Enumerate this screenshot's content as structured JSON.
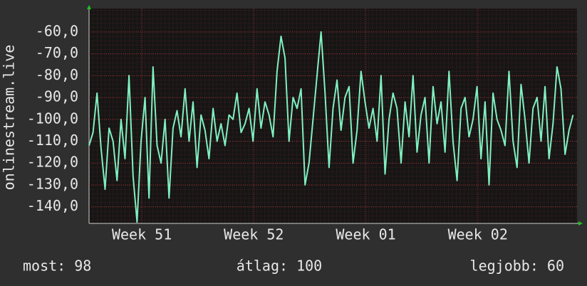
{
  "chart_data": {
    "type": "line",
    "y_label": "onlinestream.live",
    "xlim": [
      0,
      30.5
    ],
    "xticks": [
      {
        "value": 3.3,
        "label": "Week 51"
      },
      {
        "value": 10.3,
        "label": "Week 52"
      },
      {
        "value": 17.3,
        "label": "Week 01"
      },
      {
        "value": 24.3,
        "label": "Week 02"
      }
    ],
    "ylim": [
      -147.6,
      -49.3
    ],
    "yticks": [
      {
        "value": -60,
        "label": "-60,0"
      },
      {
        "value": -70,
        "label": "-70,0"
      },
      {
        "value": -80,
        "label": "-80,0"
      },
      {
        "value": -90,
        "label": "-90,0"
      },
      {
        "value": -100,
        "label": "-100,0"
      },
      {
        "value": -110,
        "label": "-110,0"
      },
      {
        "value": -120,
        "label": "-120,0"
      },
      {
        "value": -130,
        "label": "-130,0"
      },
      {
        "value": -140,
        "label": "-140,0"
      }
    ],
    "grid": true,
    "x": [
      0,
      0.25,
      0.5,
      0.75,
      1,
      1.25,
      1.5,
      1.75,
      2,
      2.25,
      2.5,
      2.75,
      3,
      3.25,
      3.5,
      3.75,
      4,
      4.25,
      4.5,
      4.75,
      5,
      5.25,
      5.5,
      5.75,
      6,
      6.25,
      6.5,
      6.75,
      7,
      7.25,
      7.5,
      7.75,
      8,
      8.25,
      8.5,
      8.75,
      9,
      9.25,
      9.5,
      9.75,
      10,
      10.25,
      10.5,
      10.75,
      11,
      11.25,
      11.5,
      11.75,
      12,
      12.25,
      12.5,
      12.75,
      13,
      13.25,
      13.5,
      13.75,
      14,
      14.25,
      14.5,
      14.75,
      15,
      15.25,
      15.5,
      15.75,
      16,
      16.25,
      16.5,
      16.75,
      17,
      17.25,
      17.5,
      17.75,
      18,
      18.25,
      18.5,
      18.75,
      19,
      19.25,
      19.5,
      19.75,
      20,
      20.25,
      20.5,
      20.75,
      21,
      21.25,
      21.5,
      21.75,
      22,
      22.25,
      22.5,
      22.75,
      23,
      23.25,
      23.5,
      23.75,
      24,
      24.25,
      24.5,
      24.75,
      25,
      25.25,
      25.5,
      25.75,
      26,
      26.25,
      26.5,
      26.75,
      27,
      27.25,
      27.5,
      27.75,
      28,
      28.25,
      28.5,
      28.75,
      29,
      29.25,
      29.5,
      29.75,
      30,
      30.25
    ],
    "series": [
      {
        "color": "#80f0c0",
        "values": [
          -112,
          -106,
          -88,
          -113,
          -132,
          -104,
          -110,
          -128,
          -100,
          -118,
          -80,
          -126,
          -147,
          -110,
          -90,
          -136,
          -76,
          -112,
          -120,
          -100,
          -136,
          -104,
          -96,
          -108,
          -86,
          -110,
          -92,
          -122,
          -98,
          -105,
          -118,
          -95,
          -110,
          -102,
          -112,
          -98,
          -100,
          -88,
          -106,
          -102,
          -95,
          -110,
          -86,
          -104,
          -92,
          -98,
          -108,
          -78,
          -62,
          -72,
          -110,
          -90,
          -95,
          -86,
          -130,
          -120,
          -100,
          -80,
          -60,
          -88,
          -122,
          -95,
          -82,
          -105,
          -90,
          -85,
          -120,
          -105,
          -78,
          -92,
          -104,
          -95,
          -110,
          -80,
          -125,
          -100,
          -88,
          -95,
          -120,
          -92,
          -108,
          -80,
          -115,
          -98,
          -90,
          -120,
          -85,
          -102,
          -92,
          -115,
          -78,
          -110,
          -128,
          -95,
          -90,
          -108,
          -100,
          -85,
          -118,
          -92,
          -130,
          -88,
          -100,
          -105,
          -112,
          -78,
          -110,
          -122,
          -84,
          -100,
          -120,
          -95,
          -90,
          -110,
          -85,
          -118,
          -102,
          -76,
          -86,
          -116,
          -105,
          -98
        ]
      }
    ],
    "stats": [
      "most: 98",
      "átlag: 100",
      "legjobb: 60"
    ]
  }
}
